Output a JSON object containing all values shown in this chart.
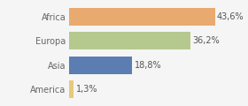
{
  "categories": [
    "America",
    "Asia",
    "Europa",
    "Africa"
  ],
  "values": [
    1.3,
    18.8,
    36.2,
    43.6
  ],
  "labels": [
    "1,3%",
    "18,8%",
    "36,2%",
    "43,6%"
  ],
  "bar_colors": [
    "#e8c97a",
    "#5b7db1",
    "#b5c98e",
    "#e8aa6e"
  ],
  "background_color": "#f5f5f5",
  "xlim": [
    0,
    52
  ],
  "label_fontsize": 7.0,
  "tick_fontsize": 7.0,
  "bar_height": 0.72
}
